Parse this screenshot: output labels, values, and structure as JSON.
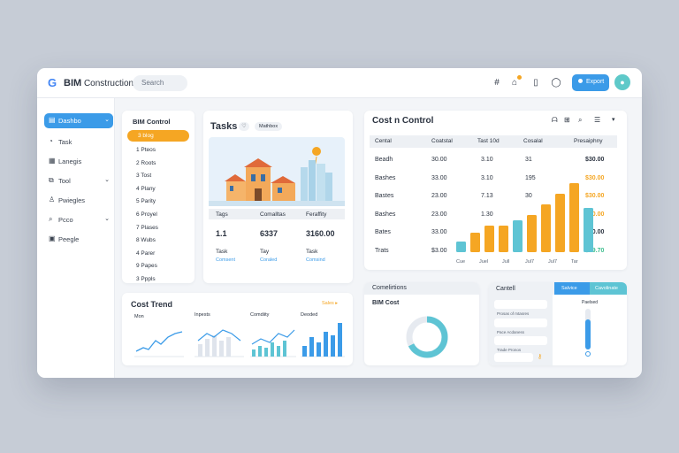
{
  "topbar": {
    "logo": "G",
    "title_bold": "BIM",
    "title_rest": " Construction",
    "search_placeholder": "Search",
    "icons": [
      "grid-icon",
      "bell-icon",
      "clipboard-icon",
      "chat-icon"
    ],
    "button_label": "Export",
    "avatar": "●"
  },
  "sidebar": {
    "items": [
      {
        "label": "Dashbo",
        "icon": "▤",
        "active": true,
        "chev": "⌄"
      },
      {
        "label": "Task",
        "icon": "◔",
        "active": false,
        "chev": ""
      },
      {
        "label": "Lanegis",
        "icon": "▦",
        "active": false,
        "chev": ""
      },
      {
        "label": "Tool",
        "icon": "⧉",
        "active": false,
        "chev": "⌄"
      },
      {
        "label": "Pwiegles",
        "icon": "♙",
        "active": false,
        "chev": ""
      },
      {
        "label": "Pcco",
        "icon": "⌕",
        "active": false,
        "chev": "⌄"
      },
      {
        "label": "Peegle",
        "icon": "▣",
        "active": false,
        "chev": ""
      }
    ]
  },
  "bim_list": {
    "title": "BIM Control",
    "active_label": "3 blog",
    "items": [
      "1 Pteos",
      "2 Roots",
      "3 Tost",
      "4 Plany",
      "5 Parity",
      "6 Proyel",
      "7 Plases",
      "8 Wubs",
      "4 Parer",
      "9 Papes",
      "3 Pppls"
    ]
  },
  "tasks": {
    "title": "Tasks",
    "chip": "♡",
    "tab": "Mathbox",
    "cols": [
      "Tags",
      "Comalltas",
      "Feraffity"
    ],
    "values": [
      "1.1",
      "6337",
      "3160.00"
    ],
    "labels": [
      "Task",
      "Tay",
      "Task"
    ],
    "sublabels": [
      "Comsent",
      "Coraled",
      "Comsind"
    ]
  },
  "cost_control": {
    "title": "Cost n Control",
    "tool_icons": [
      "ᗩ",
      "⊞",
      "⌕",
      "☰",
      "▾"
    ],
    "headers": [
      "Cental",
      "Coatstal",
      "Tast 10d",
      "Cosalal",
      "Presaiphny"
    ],
    "rows": [
      {
        "name": "Beadh",
        "v1": "30.00",
        "v2": "3.10",
        "v3": "31",
        "v4": "$30.00"
      },
      {
        "name": "Bashes",
        "v1": "33.00",
        "v2": "3.10",
        "v3": "195",
        "v4": "$30.00"
      },
      {
        "name": "Bastes",
        "v1": "23.00",
        "v2": "7.13",
        "v3": "30",
        "v4": "$30.00"
      },
      {
        "name": "Bashes",
        "v1": "23.00",
        "v2": "1.30",
        "v3": "",
        "v4": "$70.00"
      },
      {
        "name": "Bates",
        "v1": "33.00",
        "v2": "",
        "v3": "",
        "v4": "$30.00"
      },
      {
        "name": "Trats",
        "v1": "$3.00",
        "v2": "",
        "v3": "",
        "v4": "$39.70"
      }
    ],
    "v4_colors": [
      "#2b3340",
      "#f5a623",
      "#f5a623",
      "#f5a623",
      "#2b3340",
      "#3fbf8f"
    ]
  },
  "cost_chart": {
    "x_labels": [
      "Cue",
      "Juel",
      "Jull",
      "Jul7",
      "Jul7",
      "Tar"
    ]
  },
  "cost_trend": {
    "title": "Cost Trend",
    "link": "Sales ▸",
    "mini_titles": [
      "Mon",
      "Inpests",
      "Comdiity",
      "Deoded"
    ]
  },
  "conditions": {
    "title": "Comelirtions",
    "subtitle": "BIM Cost"
  },
  "controls": {
    "title": "Cantell",
    "tabs": [
      "Salvice",
      "Cavolinate"
    ],
    "fields": [
      "",
      "",
      "",
      ""
    ],
    "field_labels": [
      "Prosas of mtasres",
      "Pace Acdaness",
      "Trade Pronos"
    ],
    "slider_label": "Paelsed",
    "slider_level": 0.75
  },
  "colors": {
    "accent_blue": "#3b9be8",
    "orange": "#f5a623",
    "teal": "#5ec4d4"
  }
}
